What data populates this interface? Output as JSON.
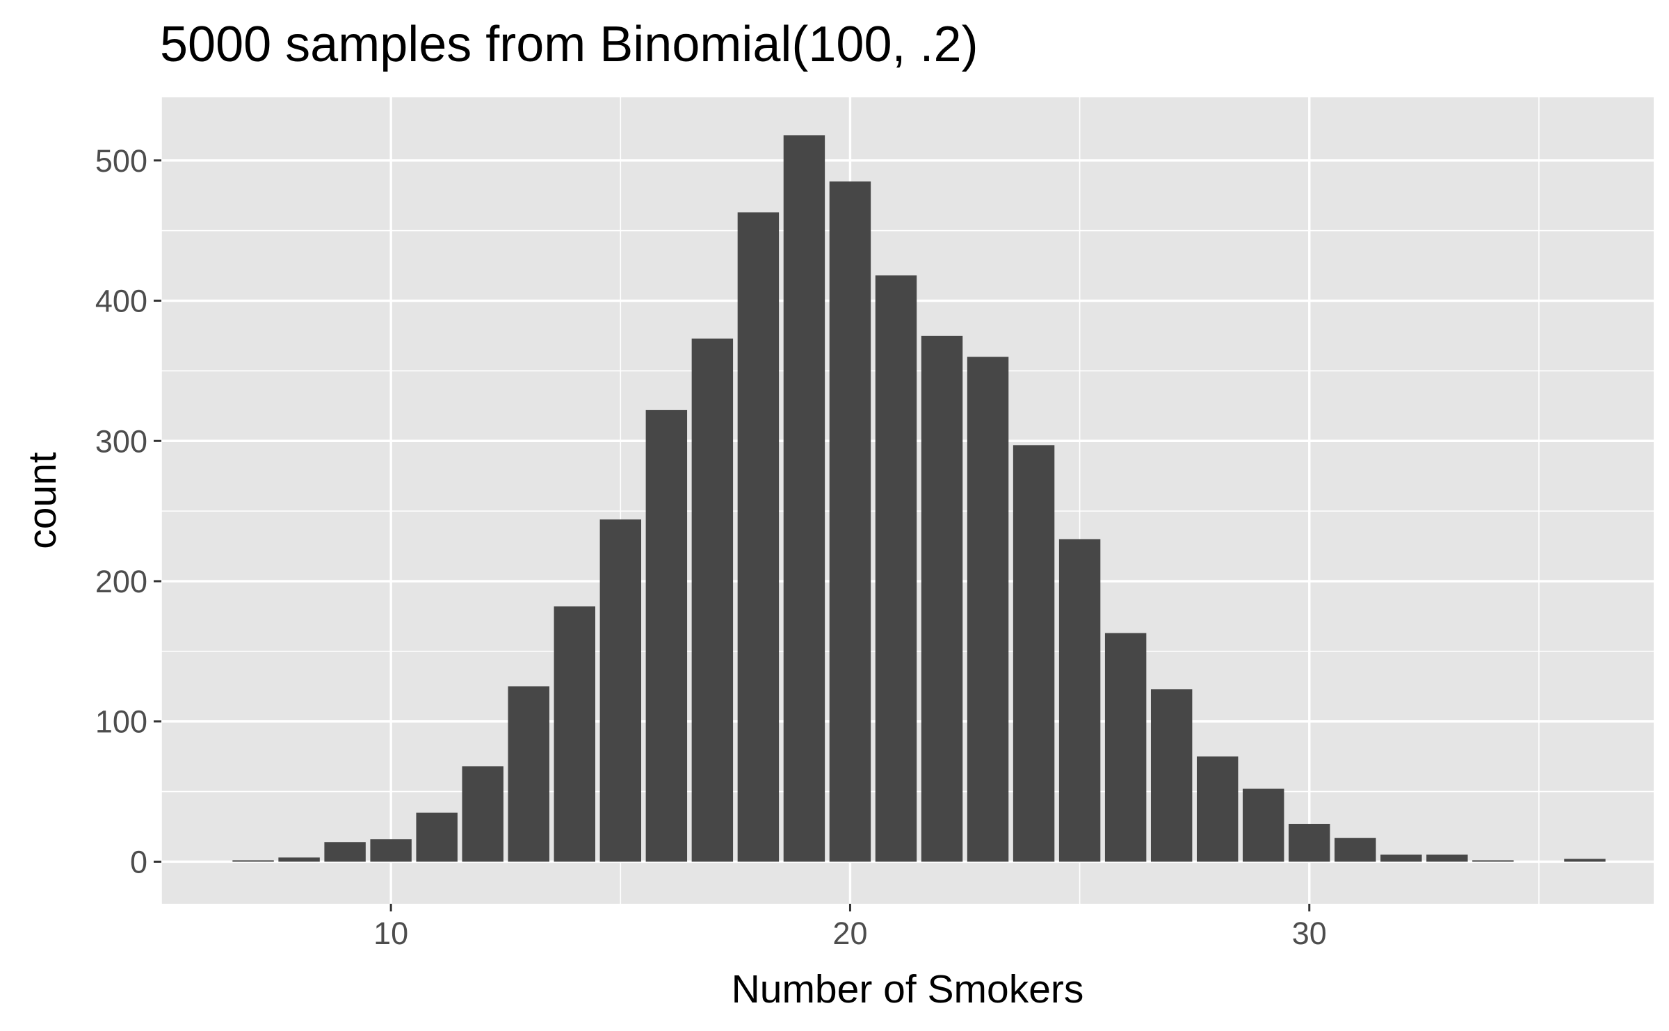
{
  "chart_data": {
    "type": "bar",
    "title": "5000 samples from Binomial(100, .2)",
    "xlabel": "Number of Smokers",
    "ylabel": "count",
    "xlim": [
      5,
      37.5
    ],
    "ylim": [
      -30,
      545
    ],
    "x_ticks": [
      10,
      20,
      30
    ],
    "y_ticks": [
      0,
      100,
      200,
      300,
      400,
      500
    ],
    "grid": true,
    "bar_color": "#474747",
    "panel_color": "#e5e5e5",
    "grid_color": "#ffffff",
    "x": [
      7,
      8,
      9,
      10,
      11,
      12,
      13,
      14,
      15,
      16,
      17,
      18,
      19,
      20,
      21,
      22,
      23,
      24,
      25,
      26,
      27,
      28,
      29,
      30,
      31,
      32,
      33,
      34,
      35,
      36
    ],
    "values": [
      1,
      3,
      14,
      16,
      35,
      68,
      125,
      182,
      244,
      322,
      373,
      463,
      518,
      485,
      418,
      375,
      360,
      297,
      230,
      163,
      123,
      75,
      52,
      27,
      17,
      5,
      5,
      1,
      0,
      2
    ]
  }
}
